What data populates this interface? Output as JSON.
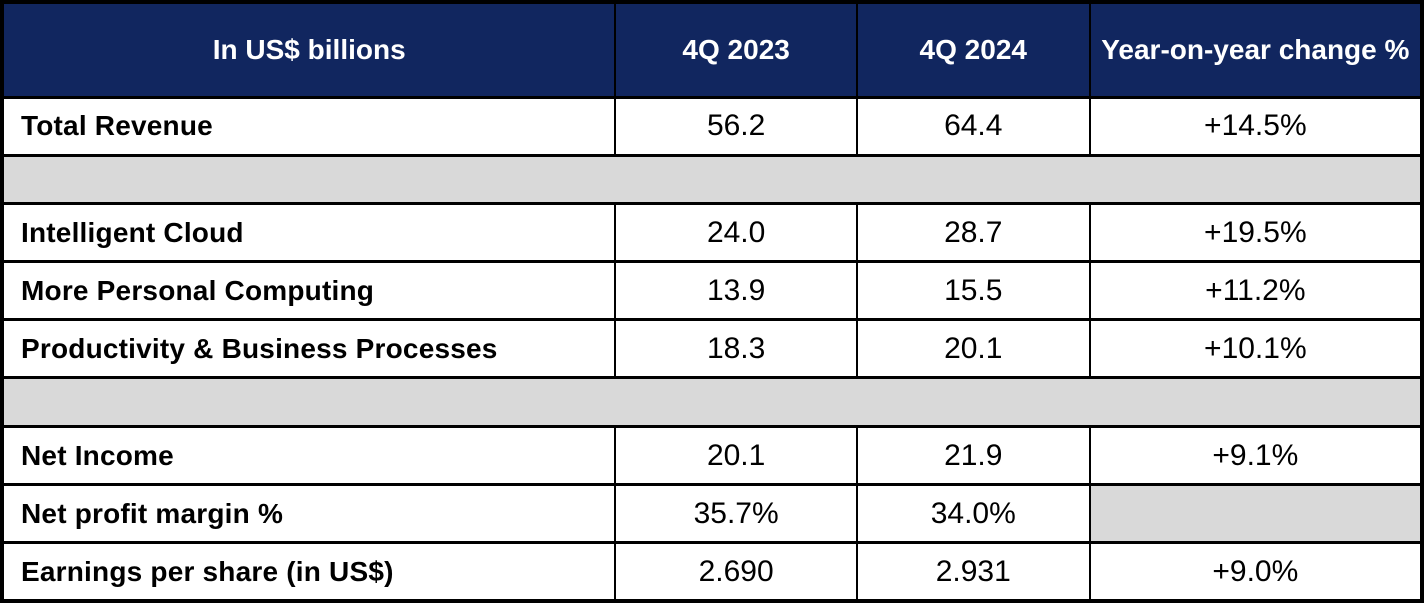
{
  "chart_data": {
    "type": "table",
    "columns": [
      "In US$ billions",
      "4Q 2023",
      "4Q 2024",
      "Year-on-year change %"
    ],
    "rows": [
      {
        "label": "Total Revenue",
        "values": [
          "56.2",
          "64.4",
          "+14.5%"
        ]
      },
      {
        "label": "Intelligent Cloud",
        "values": [
          "24.0",
          "28.7",
          "+19.5%"
        ]
      },
      {
        "label": "More Personal Computing",
        "values": [
          "13.9",
          "15.5",
          "+11.2%"
        ]
      },
      {
        "label": "Productivity & Business Processes",
        "values": [
          "18.3",
          "20.1",
          "+10.1%"
        ]
      },
      {
        "label": "Net Income",
        "values": [
          "20.1",
          "21.9",
          "+9.1%"
        ]
      },
      {
        "label": "Net profit margin %",
        "values": [
          "35.7%",
          "34.0%",
          ""
        ]
      },
      {
        "label": "Earnings per share (in US$)",
        "values": [
          "2.690",
          "2.931",
          "+9.0%"
        ]
      }
    ],
    "layout": {
      "spacer_bands_after_rows": [
        0,
        3
      ],
      "empty_gray_cell": {
        "row": 5,
        "column": 3
      }
    }
  },
  "colors": {
    "header_bg": "#11265f",
    "header_text": "#ffffff",
    "spacer_bg": "#d9d9d9",
    "border": "#000000",
    "body_text": "#000000"
  }
}
